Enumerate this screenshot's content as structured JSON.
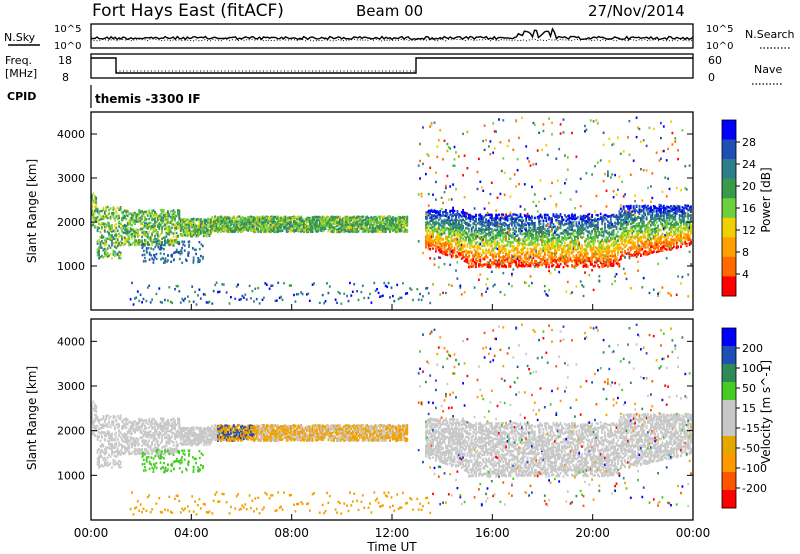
{
  "header": {
    "station": "Fort Hays East (fitACF)",
    "beam": "Beam 00",
    "date": "27/Nov/2014"
  },
  "panels": {
    "nsky": {
      "label": "N.Sky",
      "left_ticks": [
        "10^5",
        "10^0"
      ],
      "right_ticks": [
        "10^5",
        "10^0"
      ],
      "right_label": "N.Search"
    },
    "freq": {
      "label_line1": "Freq.",
      "label_line2": "[MHz]",
      "left_ticks": [
        "18",
        "8"
      ],
      "right_ticks": [
        "60",
        "0"
      ],
      "right_label": "Nave"
    },
    "cpid": {
      "label": "CPID",
      "text": "themis -3300 IF"
    }
  },
  "colors": {
    "power": [
      "#0000ff",
      "#1f4fb4",
      "#2e7d8a",
      "#3a9a4a",
      "#6ccf3c",
      "#f0d000",
      "#ffa000",
      "#ff6a00",
      "#ff0000"
    ],
    "velocity": [
      "#ff0000",
      "#ff5500",
      "#ff9900",
      "#e6a800",
      "#c8c8c8",
      "#c8c8c8",
      "#44cc22",
      "#2e8b57",
      "#1f4fb4",
      "#0000ff"
    ]
  },
  "chart_data": [
    {
      "type": "heatmap",
      "ylabel": "Slant Range [km]",
      "xlim": [
        0,
        24
      ],
      "ylim": [
        0,
        4500
      ],
      "yticks": [
        1000,
        2000,
        3000,
        4000
      ],
      "colorbar": {
        "label": "Power [dB]",
        "ticks": [
          "4",
          "8",
          "12",
          "16",
          "20",
          "24",
          "28"
        ],
        "range": [
          0,
          30
        ]
      }
    },
    {
      "type": "heatmap",
      "ylabel": "Slant Range [km]",
      "xlabel": "Time UT",
      "xlim": [
        0,
        24
      ],
      "ylim": [
        0,
        4500
      ],
      "yticks": [
        1000,
        2000,
        3000,
        4000
      ],
      "xticks": [
        "00:00",
        "04:00",
        "08:00",
        "12:00",
        "16:00",
        "20:00",
        "00:00"
      ],
      "colorbar": {
        "label": "Velocity [m s^-1]",
        "ticks": [
          "200",
          "100",
          "50",
          "15",
          "-15",
          "-50",
          "-100",
          "-200"
        ]
      }
    }
  ]
}
